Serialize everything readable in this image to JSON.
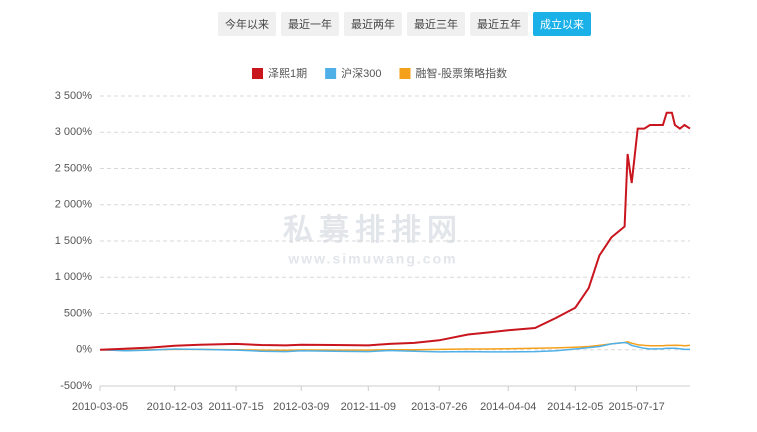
{
  "controls": {
    "buttons": [
      "今年以来",
      "最近一年",
      "最近两年",
      "最近三年",
      "最近五年",
      "成立以来"
    ],
    "active": 5
  },
  "chart_data": {
    "type": "line",
    "watermark": {
      "title": "私募排排网",
      "url": "www.simuwang.com"
    },
    "x": [
      "2010-03-05",
      "2010-06-04",
      "2010-09-03",
      "2010-12-03",
      "2011-03-04",
      "2011-07-15",
      "2011-10-14",
      "2012-01-13",
      "2012-03-09",
      "2012-07-06",
      "2012-11-09",
      "2013-01-25",
      "2013-04-26",
      "2013-07-26",
      "2013-11-08",
      "2014-01-24",
      "2014-04-04",
      "2014-07-11",
      "2014-09-26",
      "2014-12-05",
      "2015-01-23",
      "2015-03-03",
      "2015-04-16",
      "2015-06-03",
      "2015-06-14",
      "2015-06-29",
      "2015-07-21",
      "2015-08-14",
      "2015-09-04",
      "2015-10-21",
      "2015-11-04",
      "2015-11-23",
      "2015-12-04",
      "2015-12-22",
      "2016-01-08",
      "2016-01-28"
    ],
    "series": [
      {
        "name": "泽熙1期",
        "color": "#c9151e",
        "values": [
          0,
          15,
          30,
          55,
          70,
          80,
          65,
          60,
          70,
          65,
          60,
          80,
          95,
          130,
          210,
          240,
          270,
          300,
          440,
          580,
          850,
          1300,
          1550,
          1700,
          2700,
          2300,
          3050,
          3050,
          3100,
          3100,
          3270,
          3270,
          3100,
          3050,
          3100,
          3050
        ]
      },
      {
        "name": "沪深300",
        "color": "#4fb0e8",
        "values": [
          0,
          -15,
          -5,
          10,
          5,
          -5,
          -20,
          -25,
          -15,
          -20,
          -25,
          -10,
          -20,
          -30,
          -25,
          -30,
          -30,
          -25,
          -15,
          10,
          30,
          45,
          80,
          100,
          90,
          60,
          40,
          20,
          10,
          15,
          20,
          20,
          20,
          15,
          5,
          5
        ]
      },
      {
        "name": "融智-股票策略指数",
        "color": "#f5a01a",
        "values": [
          0,
          -10,
          0,
          5,
          5,
          0,
          -5,
          -8,
          -3,
          -5,
          -5,
          0,
          0,
          5,
          10,
          10,
          15,
          20,
          25,
          35,
          45,
          60,
          80,
          100,
          110,
          90,
          70,
          60,
          55,
          55,
          60,
          60,
          62,
          60,
          55,
          60
        ]
      }
    ],
    "xlim": [
      "2010-03-05",
      "2016-01-28"
    ],
    "xticks": [
      "2010-03-05",
      "2010-12-03",
      "2011-07-15",
      "2012-03-09",
      "2012-11-09",
      "2013-07-26",
      "2014-04-04",
      "2014-12-05",
      "2015-07-17"
    ],
    "ylim": [
      -500,
      3500
    ],
    "yticks": [
      {
        "value": -500,
        "label": "-500%"
      },
      {
        "value": 0,
        "label": "0%"
      },
      {
        "value": 500,
        "label": "500%"
      },
      {
        "value": 1000,
        "label": "1 000%"
      },
      {
        "value": 1500,
        "label": "1 500%"
      },
      {
        "value": 2000,
        "label": "2 000%"
      },
      {
        "value": 2500,
        "label": "2 500%"
      },
      {
        "value": 3000,
        "label": "3 000%"
      },
      {
        "value": 3500,
        "label": "3 500%"
      }
    ],
    "grid": true
  }
}
